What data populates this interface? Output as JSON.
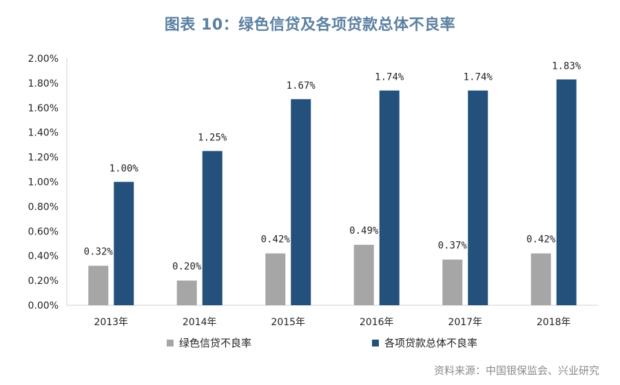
{
  "chart_data": {
    "type": "bar",
    "title": "图表 10：绿色信贷及各项贷款总体不良率",
    "categories": [
      "2013年",
      "2014年",
      "2015年",
      "2016年",
      "2017年",
      "2018年"
    ],
    "series": [
      {
        "name": "绿色信贷不良率",
        "values": [
          0.32,
          0.2,
          0.42,
          0.49,
          0.37,
          0.42
        ],
        "color": "#a6a6a6"
      },
      {
        "name": "各项贷款总体不良率",
        "values": [
          1.0,
          1.25,
          1.67,
          1.74,
          1.74,
          1.83
        ],
        "color": "#24507c"
      }
    ],
    "value_labels": [
      [
        "0.32%",
        "0.20%",
        "0.42%",
        "0.49%",
        "0.37%",
        "0.42%"
      ],
      [
        "1.00%",
        "1.25%",
        "1.67%",
        "1.74%",
        "1.74%",
        "1.83%"
      ]
    ],
    "ylim": [
      0,
      2.0
    ],
    "yticks": [
      "0.00%",
      "0.20%",
      "0.40%",
      "0.60%",
      "0.80%",
      "1.00%",
      "1.20%",
      "1.40%",
      "1.60%",
      "1.80%",
      "2.00%"
    ],
    "legend": "bottom",
    "grid": false
  },
  "source": "资料来源：中国银保监会、兴业研究"
}
